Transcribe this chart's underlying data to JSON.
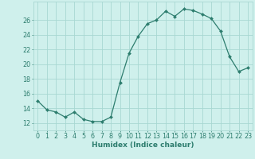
{
  "x": [
    0,
    1,
    2,
    3,
    4,
    5,
    6,
    7,
    8,
    9,
    10,
    11,
    12,
    13,
    14,
    15,
    16,
    17,
    18,
    19,
    20,
    21,
    22,
    23
  ],
  "y": [
    15.0,
    13.8,
    13.5,
    12.8,
    13.5,
    12.5,
    12.2,
    12.2,
    12.8,
    17.5,
    21.5,
    23.8,
    25.5,
    26.0,
    27.2,
    26.5,
    27.5,
    27.3,
    26.8,
    26.2,
    24.5,
    21.0,
    19.0,
    19.5
  ],
  "line_color": "#2d7d6e",
  "marker": "D",
  "marker_size": 2.0,
  "bg_color": "#cff0ec",
  "grid_color": "#a8d8d2",
  "xlabel": "Humidex (Indice chaleur)",
  "ylabel_ticks": [
    12,
    14,
    16,
    18,
    20,
    22,
    24,
    26
  ],
  "ylim": [
    11.0,
    28.5
  ],
  "xlim": [
    -0.5,
    23.5
  ],
  "xticks": [
    0,
    1,
    2,
    3,
    4,
    5,
    6,
    7,
    8,
    9,
    10,
    11,
    12,
    13,
    14,
    15,
    16,
    17,
    18,
    19,
    20,
    21,
    22,
    23
  ],
  "tick_color": "#2d7d6e",
  "font_size_xlabel": 6.5,
  "font_size_ticks": 5.8,
  "linewidth": 0.9
}
